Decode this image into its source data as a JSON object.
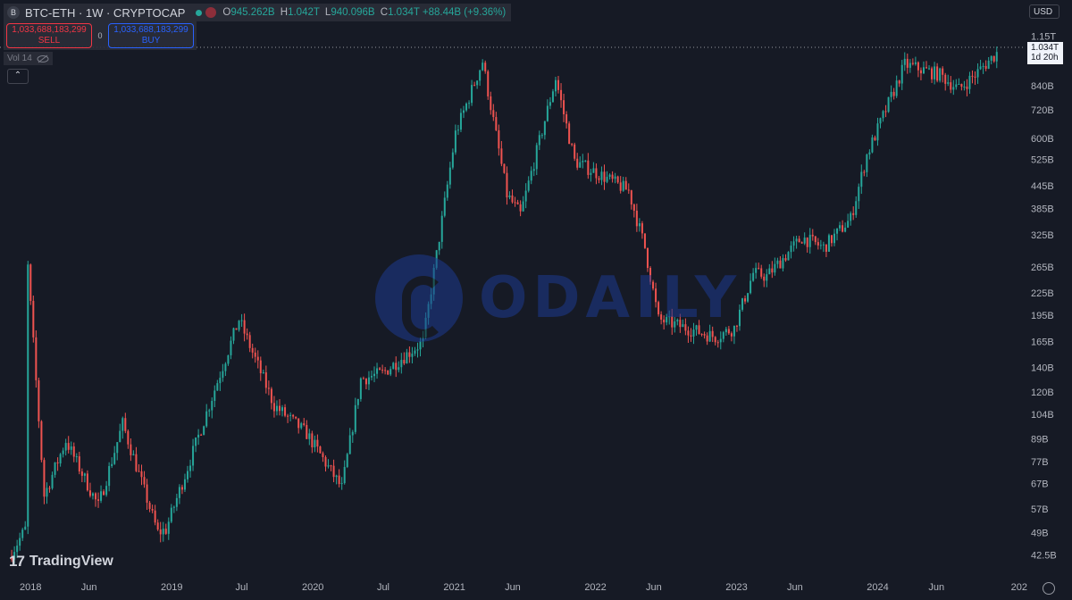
{
  "header": {
    "symbol_icon": "B",
    "title": "BTC-ETH · 1W · CRYPTOCAP",
    "ohlc": [
      {
        "label": "O",
        "value": "945.262B"
      },
      {
        "label": "H",
        "value": "1.042T"
      },
      {
        "label": "L",
        "value": "940.096B"
      },
      {
        "label": "C",
        "value": "1.034T"
      },
      {
        "label": "",
        "value": "+88.44B (+9.36%)"
      }
    ]
  },
  "trade": {
    "sell_price": "1,033,688,183,299",
    "sell_label": "SELL",
    "spread": "0",
    "buy_price": "1,033,688,183,299",
    "buy_label": "BUY"
  },
  "volume_label": "Vol 14",
  "collapse_glyph": "⌃",
  "currency": "USD",
  "last_price": {
    "value": "1.034T",
    "countdown": "1d 20h"
  },
  "watermark": "ODAILY",
  "brand": "TradingView",
  "colors": {
    "up": "#26a69a",
    "down": "#ef5350",
    "background": "#161a25",
    "axis_text": "#b2b5be"
  },
  "icons": [
    "symbol-icon",
    "status-dot-icon",
    "currency-flag-icon",
    "eye-off-icon",
    "chevron-up-icon",
    "settings-gear-icon",
    "tradingview-logo-icon"
  ],
  "chart_data": {
    "type": "line",
    "style": "candlestick",
    "scale": "log",
    "title": "",
    "xlabel": "",
    "ylabel": "",
    "y_ticks": [
      "1.15T",
      "840B",
      "720B",
      "600B",
      "525B",
      "445B",
      "385B",
      "325B",
      "265B",
      "225B",
      "195B",
      "165B",
      "140B",
      "120B",
      "104B",
      "89B",
      "77B",
      "67B",
      "57B",
      "49B",
      "42.5B"
    ],
    "x_ticks": [
      "2018",
      "Jun",
      "2019",
      "Jul",
      "2020",
      "Jul",
      "2021",
      "Jun",
      "2022",
      "Jun",
      "2023",
      "Jun",
      "2024",
      "Jun",
      "202"
    ],
    "ylim": [
      41,
      1200
    ],
    "xlim": [
      "2017-10-23",
      "2024-12-30"
    ],
    "series": [
      {
        "x": [
          "2017-11-06",
          "2017-12-18",
          "2017-12-25",
          "2018-02-05",
          "2018-04-02",
          "2018-06-25",
          "2018-08-27",
          "2018-11-26",
          "2018-12-17",
          "2019-06-24",
          "2019-09-23",
          "2019-12-16",
          "2020-03-16",
          "2020-05-04",
          "2020-06-29",
          "2020-10-12",
          "2021-01-04",
          "2021-03-15",
          "2021-05-17",
          "2021-06-21",
          "2021-09-20",
          "2021-11-08",
          "2022-01-24",
          "2022-03-28",
          "2022-05-09",
          "2022-06-13",
          "2022-11-07",
          "2022-12-26",
          "2023-02-13",
          "2023-03-20",
          "2023-06-19",
          "2023-08-14",
          "2023-10-23",
          "2023-12-04",
          "2024-03-11",
          "2024-06-10",
          "2024-07-29",
          "2024-09-09",
          "2024-11-04"
        ],
        "y": [
          42,
          50,
          265,
          62,
          88,
          58,
          98,
          49,
          50,
          190,
          110,
          92,
          65,
          130,
          135,
          165,
          620,
          980,
          420,
          370,
          880,
          520,
          470,
          430,
          300,
          190,
          170,
          180,
          255,
          250,
          320,
          300,
          360,
          540,
          960,
          900,
          820,
          900,
          1034
        ]
      }
    ]
  }
}
